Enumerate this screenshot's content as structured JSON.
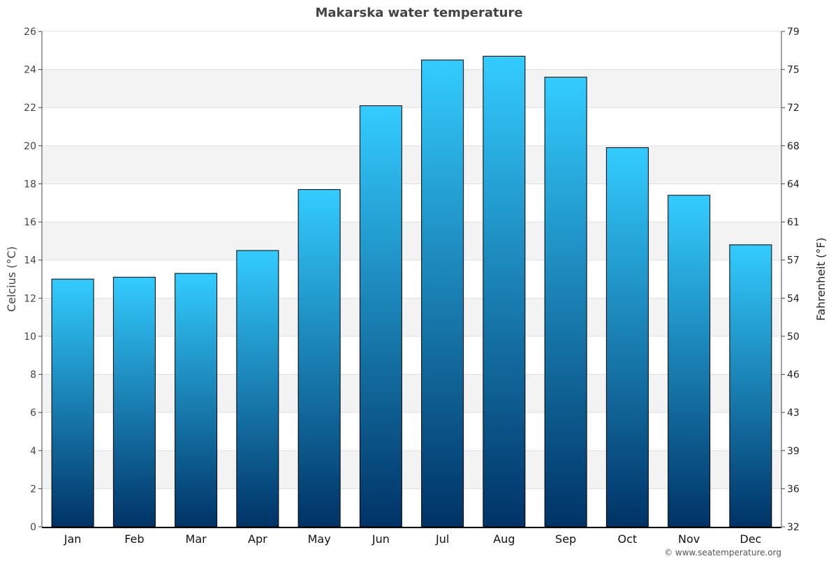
{
  "chart_data": {
    "type": "bar",
    "title": "Makarska water temperature",
    "ylabel": "Celcius (°C)",
    "y2label": "Fahrenheit (°F)",
    "categories": [
      "Jan",
      "Feb",
      "Mar",
      "Apr",
      "May",
      "Jun",
      "Jul",
      "Aug",
      "Sep",
      "Oct",
      "Nov",
      "Dec"
    ],
    "values": [
      13.0,
      13.1,
      13.3,
      14.5,
      17.7,
      22.1,
      24.5,
      24.7,
      23.6,
      19.9,
      17.4,
      14.8
    ],
    "ylim": [
      0,
      26
    ],
    "yticks": [
      0,
      2,
      4,
      6,
      8,
      10,
      12,
      14,
      16,
      18,
      20,
      22,
      24,
      26
    ],
    "y2ticks": [
      32,
      36,
      39,
      43,
      46,
      50,
      54,
      57,
      61,
      64,
      68,
      72,
      75,
      79
    ],
    "grid": "horizontal alternating bands",
    "colors": {
      "bar_top": "#33ccff",
      "bar_bottom": "#003366",
      "band": "#f3f3f3",
      "title": "#444444"
    }
  },
  "footer": {
    "credit": "© www.seatemperature.org"
  }
}
